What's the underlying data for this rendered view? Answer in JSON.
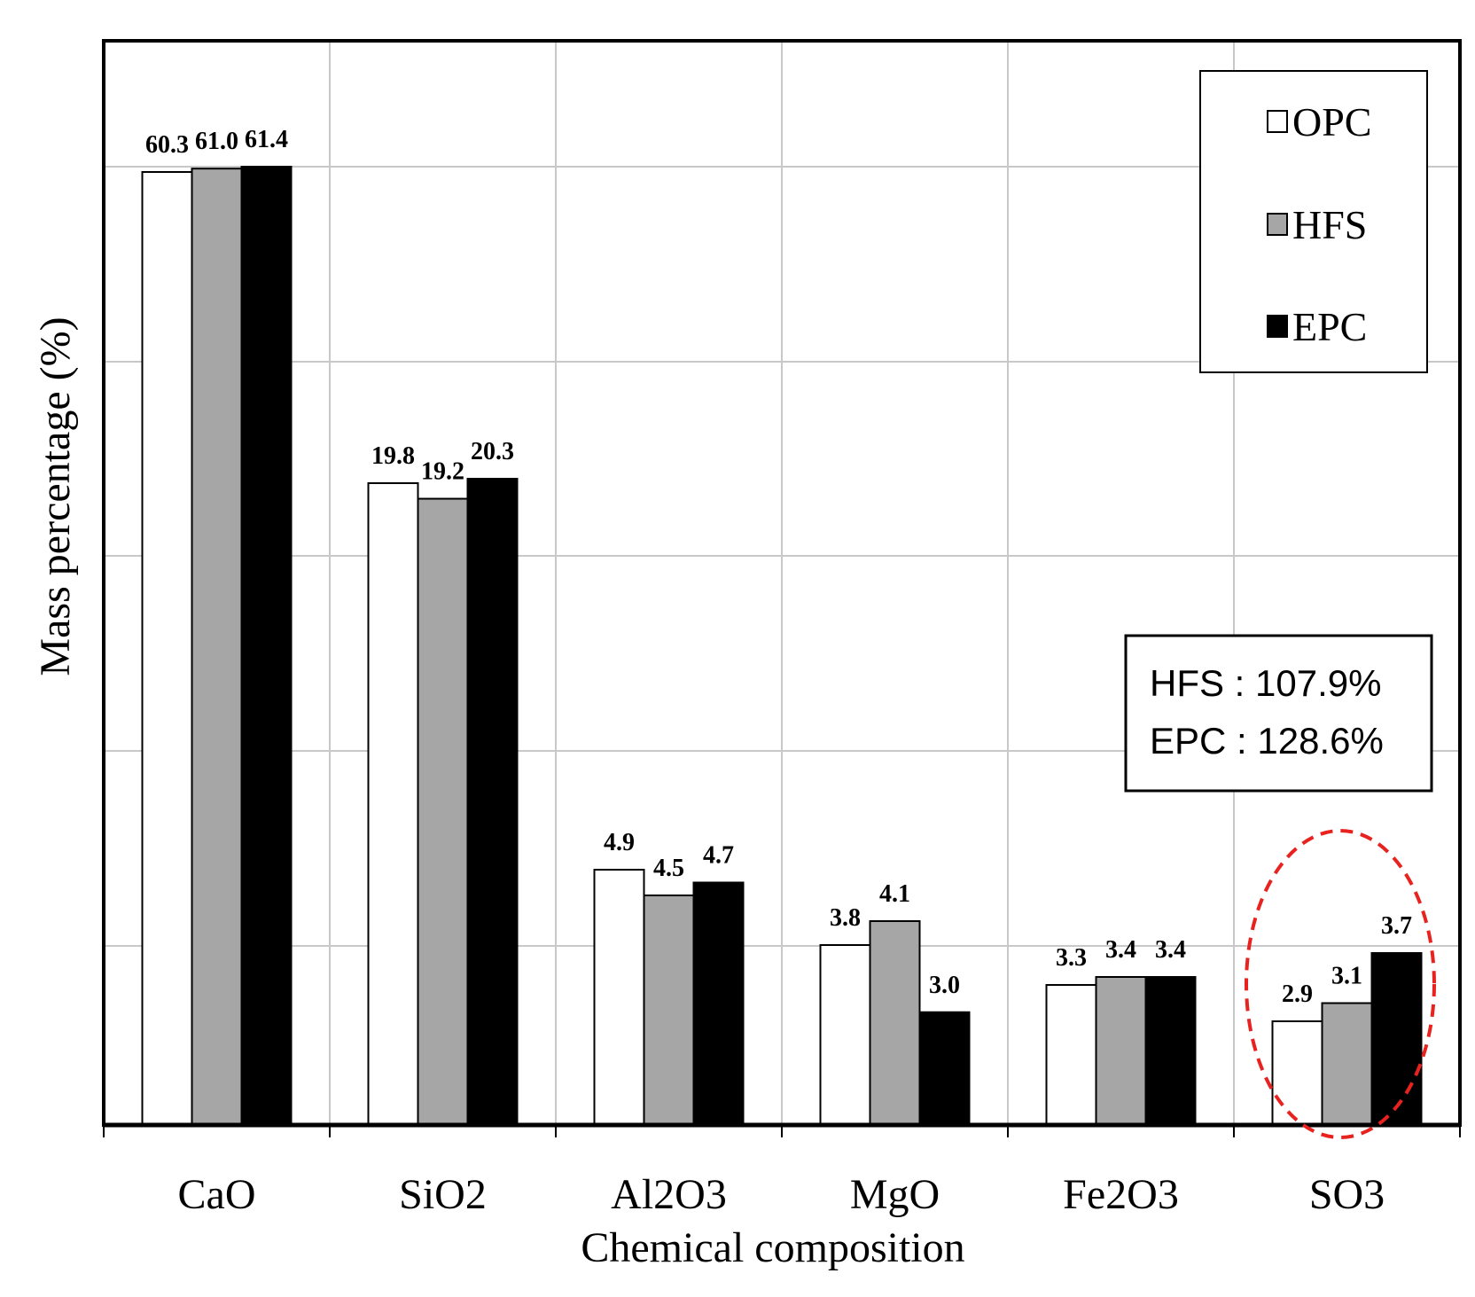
{
  "chart_data": {
    "type": "bar",
    "title": "",
    "xlabel": "Chemical composition",
    "ylabel": "Mass percentage (%)",
    "categories": [
      "CaO",
      "SiO2",
      "Al2O3",
      "MgO",
      "Fe2O3",
      "SO3"
    ],
    "series": [
      {
        "name": "OPC",
        "values": [
          60.3,
          19.8,
          4.9,
          3.8,
          3.3,
          2.9
        ],
        "color": "#ffffff"
      },
      {
        "name": "HFS",
        "values": [
          61.0,
          19.2,
          4.5,
          4.1,
          3.4,
          3.1
        ],
        "color": "#a6a6a6"
      },
      {
        "name": "EPC",
        "values": [
          61.4,
          20.3,
          4.7,
          3.0,
          3.4,
          3.7
        ],
        "color": "#000000"
      }
    ],
    "data_labels": [
      [
        "60.3",
        "61.0",
        "61.4"
      ],
      [
        "19.8",
        "19.2",
        "20.3"
      ],
      [
        "4.9",
        "4.5",
        "4.7"
      ],
      [
        "3.8",
        "4.1",
        "3.0"
      ],
      [
        "3.3",
        "3.4",
        "3.4"
      ],
      [
        "2.9",
        "3.1",
        "3.7"
      ]
    ],
    "ylim": [
      0,
      70
    ],
    "y_scale": "broken",
    "grid": true,
    "legend_position": "top-right",
    "annotation": {
      "lines": [
        "HFS : 107.9%",
        "EPC : 128.6%"
      ],
      "highlight_category": "SO3",
      "highlight_color": "#e8231f"
    }
  }
}
